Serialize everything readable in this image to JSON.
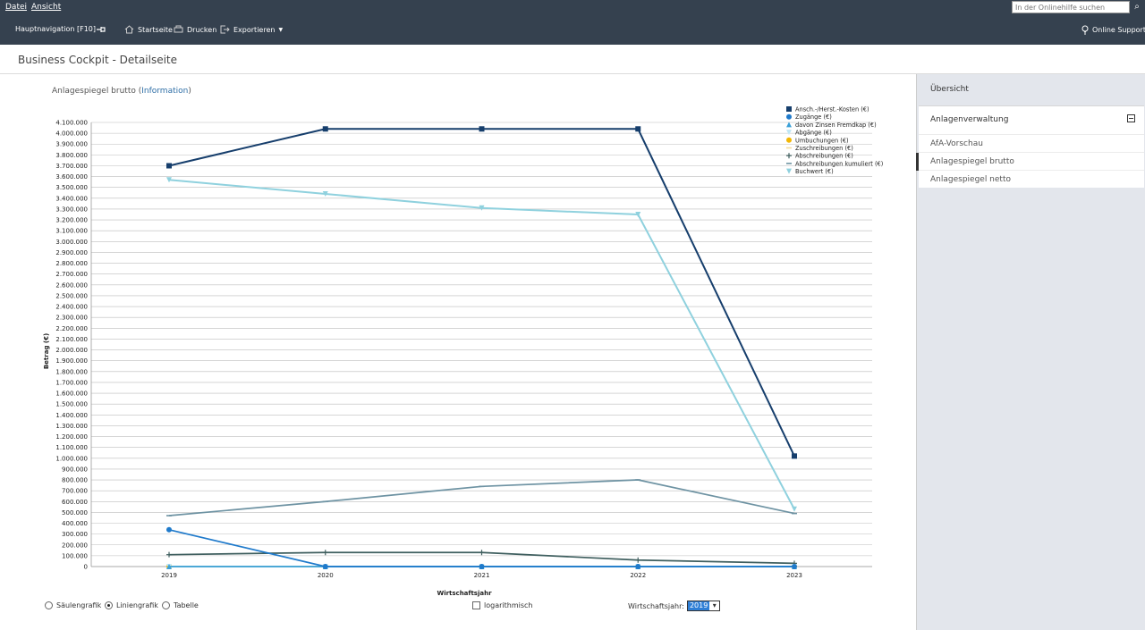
{
  "menu": {
    "file": "Datei",
    "view": "Ansicht",
    "help_search_placeholder": "In der Onlinehilfe suchen"
  },
  "toolbar": {
    "nav": "Hauptnavigation [F10]",
    "home": "Startseite",
    "print": "Drucken",
    "export": "Exportieren",
    "support": "Online Support"
  },
  "page": {
    "title": "Business Cockpit - Detailseite"
  },
  "chart_heading": {
    "text": "Anlagespiegel brutto (",
    "link": "Information",
    "close": ")"
  },
  "controls": {
    "bar": "Säulengrafik",
    "line": "Liniengrafik",
    "table": "Tabelle",
    "log": "logarithmisch",
    "year_label": "Wirtschaftsjahr:",
    "year_value": "2019"
  },
  "sidebar": {
    "title": "Übersicht",
    "group": "Anlagenverwaltung",
    "items": [
      "AfA-Vorschau",
      "Anlagespiegel brutto",
      "Anlagespiegel netto"
    ]
  },
  "colors": {
    "dark": "#35414f",
    "accent": "#2e6ea6"
  },
  "chart_data": {
    "type": "line",
    "xlabel": "Wirtschaftsjahr",
    "ylabel": "Betrag (€)",
    "categories": [
      "2019",
      "2020",
      "2021",
      "2022",
      "2023"
    ],
    "ylim": [
      0,
      4100000
    ],
    "ytick_step": 100000,
    "legend_position": "top-right",
    "grid": true,
    "series": [
      {
        "name": "Ansch.-/Herst.-Kosten (€)",
        "color": "#163e6c",
        "marker": "square",
        "values": [
          3700000,
          4040000,
          4040000,
          4040000,
          1020000
        ]
      },
      {
        "name": "Zugänge (€)",
        "color": "#1f7acb",
        "marker": "circle",
        "values": [
          340000,
          0,
          0,
          0,
          0
        ]
      },
      {
        "name": "davon Zinsen Fremdkap (€)",
        "color": "#3aa0d8",
        "marker": "triangle",
        "values": [
          0,
          0,
          0,
          0,
          0
        ]
      },
      {
        "name": "Abgänge (€)",
        "color": "#bfe6f5",
        "marker": "triangle-down",
        "values": [
          0,
          0,
          0,
          0,
          0
        ]
      },
      {
        "name": "Umbuchungen (€)",
        "color": "#f2b705",
        "marker": "circle",
        "values": [
          0,
          0,
          0,
          0,
          0
        ]
      },
      {
        "name": "Zuschreibungen (€)",
        "color": "#f3dd9e",
        "marker": "dash",
        "values": [
          0,
          0,
          0,
          0,
          0
        ]
      },
      {
        "name": "Abschreibungen (€)",
        "color": "#3f5f5f",
        "marker": "plus",
        "values": [
          110000,
          130000,
          130000,
          60000,
          30000
        ]
      },
      {
        "name": "Abschreibungen kumuliert (€)",
        "color": "#6e93a3",
        "marker": "dash",
        "values": [
          470000,
          600000,
          740000,
          800000,
          490000
        ]
      },
      {
        "name": "Buchwert (€)",
        "color": "#8fd1de",
        "marker": "triangle-down",
        "values": [
          3570000,
          3440000,
          3310000,
          3250000,
          530000
        ]
      }
    ]
  }
}
